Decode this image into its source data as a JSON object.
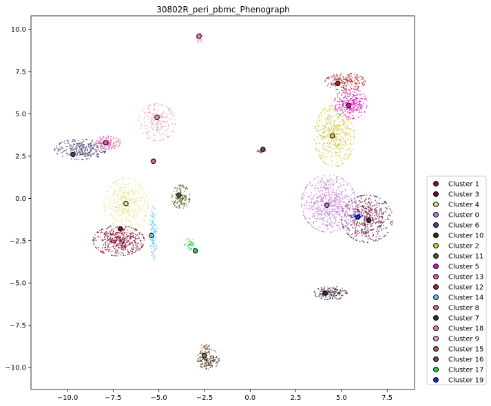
{
  "chart_data": {
    "type": "scatter",
    "title": "30802R_peri_pbmc_Phenograph",
    "xlabel": "",
    "ylabel": "",
    "xlim": [
      -12.0,
      9.0
    ],
    "ylim": [
      -11.3,
      10.8
    ],
    "x_ticks": [
      -10.0,
      -7.5,
      -5.0,
      -2.5,
      0.0,
      2.5,
      5.0,
      7.5
    ],
    "x_tick_labels": [
      "−10.0",
      "−7.5",
      "−5.0",
      "−2.5",
      "0.0",
      "2.5",
      "5.0",
      "7.5"
    ],
    "y_ticks": [
      -10.0,
      -7.5,
      -5.0,
      -2.5,
      0.0,
      2.5,
      5.0,
      7.5,
      10.0
    ],
    "y_tick_labels": [
      "−10.0",
      "−7.5",
      "−5.0",
      "−2.5",
      "0.0",
      "2.5",
      "5.0",
      "7.5",
      "10.0"
    ],
    "grid": false,
    "legend_position": "right",
    "series": [
      {
        "name": "Cluster 1",
        "color": "#6b1a4a",
        "centroid": [
          6.5,
          -1.3
        ],
        "clouds": [
          {
            "cx": 6.4,
            "cy": -1.2,
            "rx": 1.4,
            "ry": 1.4,
            "n": 520
          }
        ]
      },
      {
        "name": "Cluster 3",
        "color": "#7a0a2a",
        "centroid": [
          -7.1,
          -1.8
        ],
        "clouds": [
          {
            "cx": -7.2,
            "cy": -2.5,
            "rx": 1.4,
            "ry": 0.9,
            "n": 460
          }
        ]
      },
      {
        "name": "Cluster 4",
        "color": "#e8df8a",
        "centroid": [
          -6.8,
          -0.3
        ],
        "clouds": [
          {
            "cx": -6.8,
            "cy": -0.4,
            "rx": 1.2,
            "ry": 1.6,
            "n": 420
          }
        ]
      },
      {
        "name": "Cluster 0",
        "color": "#c27ad4",
        "centroid": [
          4.2,
          -0.4
        ],
        "clouds": [
          {
            "cx": 4.3,
            "cy": -0.3,
            "rx": 1.5,
            "ry": 1.7,
            "n": 650
          }
        ]
      },
      {
        "name": "Cluster 6",
        "color": "#4f426e",
        "centroid": [
          -9.7,
          2.6
        ],
        "clouds": [
          {
            "cx": -9.3,
            "cy": 2.9,
            "rx": 1.4,
            "ry": 0.6,
            "n": 300
          }
        ]
      },
      {
        "name": "Cluster 10",
        "color": "#3c2408",
        "centroid": [
          -2.5,
          -9.3
        ],
        "clouds": [
          {
            "cx": -2.3,
            "cy": -9.5,
            "rx": 0.6,
            "ry": 0.6,
            "n": 150
          }
        ]
      },
      {
        "name": "Cluster 2",
        "color": "#d6c63a",
        "centroid": [
          4.5,
          3.7
        ],
        "clouds": [
          {
            "cx": 4.6,
            "cy": 3.7,
            "rx": 1.1,
            "ry": 1.8,
            "n": 480
          }
        ]
      },
      {
        "name": "Cluster 11",
        "color": "#4f6121",
        "centroid": [
          -3.9,
          0.2
        ],
        "clouds": [
          {
            "cx": -3.8,
            "cy": 0.1,
            "rx": 0.5,
            "ry": 0.7,
            "n": 140
          }
        ]
      },
      {
        "name": "Cluster 5",
        "color": "#d417b8",
        "centroid": [
          5.4,
          5.5
        ],
        "clouds": [
          {
            "cx": 5.5,
            "cy": 5.6,
            "rx": 0.9,
            "ry": 0.9,
            "n": 300
          }
        ]
      },
      {
        "name": "Cluster 13",
        "color": "#c96b8f",
        "centroid": [
          -5.3,
          2.2
        ],
        "clouds": [
          {
            "cx": -5.3,
            "cy": 2.2,
            "rx": 0.15,
            "ry": 0.15,
            "n": 10
          }
        ]
      },
      {
        "name": "Cluster 12",
        "color": "#a82626",
        "centroid": [
          4.8,
          6.8
        ],
        "clouds": [
          {
            "cx": 5.2,
            "cy": 6.9,
            "rx": 1.1,
            "ry": 0.5,
            "n": 200
          }
        ]
      },
      {
        "name": "Cluster 14",
        "color": "#5bc8f0",
        "centroid": [
          -5.4,
          -2.2
        ],
        "clouds": [
          {
            "cx": -5.3,
            "cy": -2.0,
            "rx": 0.2,
            "ry": 1.6,
            "n": 120
          }
        ]
      },
      {
        "name": "Cluster 8",
        "color": "#e060b0",
        "centroid": [
          -7.9,
          3.3
        ],
        "clouds": [
          {
            "cx": -7.8,
            "cy": 3.3,
            "rx": 0.7,
            "ry": 0.4,
            "n": 150
          }
        ]
      },
      {
        "name": "Cluster 7",
        "color": "#3e2138",
        "centroid": [
          4.1,
          -5.6
        ],
        "clouds": [
          {
            "cx": 4.4,
            "cy": -5.6,
            "rx": 0.9,
            "ry": 0.4,
            "n": 160
          }
        ]
      },
      {
        "name": "Cluster 18",
        "color": "#e87ac0",
        "centroid": [
          -2.8,
          9.6
        ],
        "clouds": [
          {
            "cx": -2.8,
            "cy": 9.5,
            "rx": 0.2,
            "ry": 0.3,
            "n": 30
          }
        ]
      },
      {
        "name": "Cluster 9",
        "color": "#e8a0b2",
        "centroid": [
          -5.1,
          4.8
        ],
        "clouds": [
          {
            "cx": -5.1,
            "cy": 4.5,
            "rx": 1.0,
            "ry": 1.1,
            "n": 230
          }
        ]
      },
      {
        "name": "Cluster 15",
        "color": "#9a6a4a",
        "centroid": [
          -2.5,
          -9.3
        ],
        "clouds": [
          {
            "cx": -2.4,
            "cy": -8.8,
            "rx": 0.3,
            "ry": 0.25,
            "n": 30
          }
        ]
      },
      {
        "name": "Cluster 16",
        "color": "#7a3a6a",
        "centroid": [
          0.7,
          2.9
        ],
        "clouds": [
          {
            "cx": 0.6,
            "cy": 2.8,
            "rx": 0.25,
            "ry": 0.1,
            "n": 25
          }
        ]
      },
      {
        "name": "Cluster 17",
        "color": "#2ecc55",
        "centroid": [
          -3.0,
          -3.1
        ],
        "clouds": [
          {
            "cx": -3.3,
            "cy": -2.7,
            "rx": 0.3,
            "ry": 0.35,
            "n": 45
          }
        ]
      },
      {
        "name": "Cluster 19",
        "color": "#1a2ad4",
        "centroid": [
          5.9,
          -1.1
        ],
        "clouds": [
          {
            "cx": 5.8,
            "cy": -1.05,
            "rx": 0.35,
            "ry": 0.12,
            "n": 35
          }
        ]
      }
    ]
  }
}
